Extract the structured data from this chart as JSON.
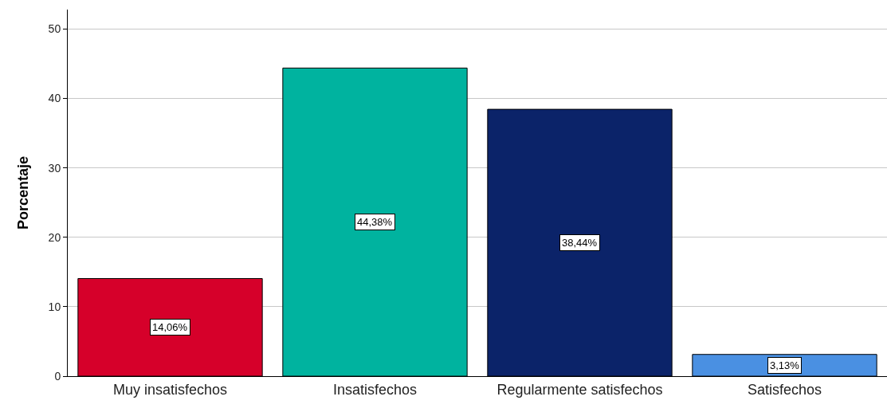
{
  "chart_data": {
    "type": "bar",
    "ylabel": "Porcentaje",
    "categories": [
      "Muy insatisfechos",
      "Insatisfechos",
      "Regularmente satisfechos",
      "Satisfechos"
    ],
    "values": [
      14.06,
      44.38,
      38.44,
      3.13
    ],
    "value_labels": [
      "14,06%",
      "44,38%",
      "38,44%",
      "3,13%"
    ],
    "colors": [
      "#d6002a",
      "#00b39f",
      "#0b2369",
      "#4a90e2"
    ],
    "ylim": [
      0,
      52.8
    ],
    "yticks": [
      0,
      10,
      20,
      30,
      40,
      50
    ],
    "grid": "y"
  }
}
